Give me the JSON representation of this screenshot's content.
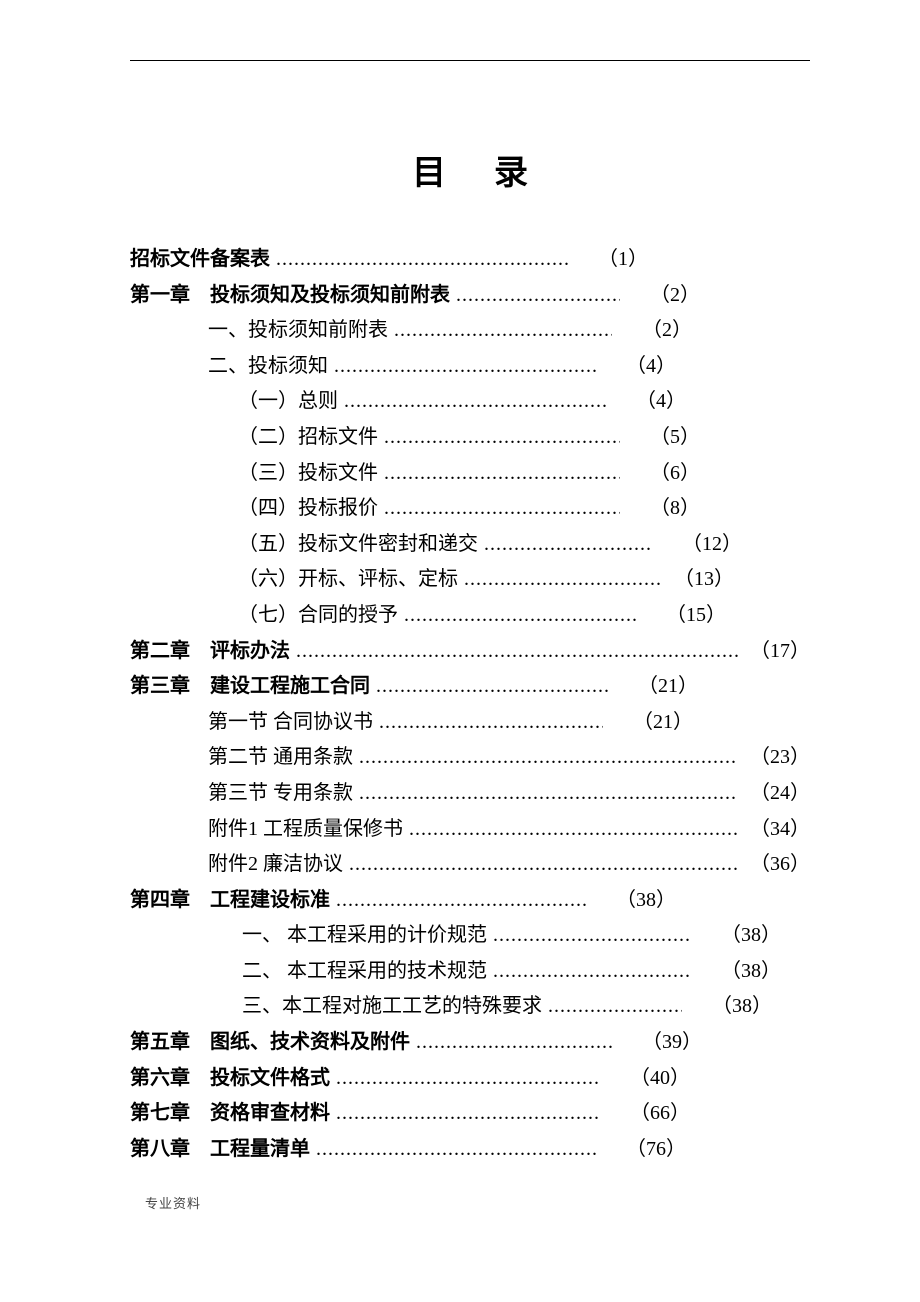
{
  "title": "目录",
  "footer": "专业资料",
  "entries": [
    {
      "label": "招标文件备案表",
      "page": "（1）",
      "indent": 0,
      "bold": true,
      "leader_width": 292,
      "gap": true
    },
    {
      "label": "第一章　投标须知及投标须知前附表",
      "page": "（2）",
      "indent": 0,
      "bold": true,
      "leader_width": 164,
      "gap": true
    },
    {
      "label": "一、投标须知前附表",
      "page": "（2）",
      "indent": 1,
      "bold": false,
      "leader_width": 218,
      "gap": true
    },
    {
      "label": "二、投标须知",
      "page": "（4）",
      "indent": 1,
      "bold": false,
      "leader_width": 262,
      "gap": true
    },
    {
      "label": "（一）总则",
      "page": "（4）",
      "indent": 2,
      "bold": false,
      "leader_width": 262,
      "gap": true
    },
    {
      "label": "（二）招标文件",
      "page": "（5）",
      "indent": 2,
      "bold": false,
      "leader_width": 236,
      "gap": true
    },
    {
      "label": "（三）投标文件",
      "page": "（6）",
      "indent": 2,
      "bold": false,
      "leader_width": 236,
      "gap": true
    },
    {
      "label": "（四）投标报价",
      "page": "（8）",
      "indent": 2,
      "bold": false,
      "leader_width": 236,
      "gap": true
    },
    {
      "label": "（五）投标文件密封和递交",
      "page": "（12）",
      "indent": 2,
      "bold": false,
      "leader_width": 168,
      "gap": true
    },
    {
      "label": "（六）开标、评标、定标",
      "page": "（13）",
      "indent": 2,
      "bold": false,
      "leader_width": 198,
      "gap": false
    },
    {
      "label": "（七）合同的授予",
      "page": "（15）",
      "indent": 2,
      "bold": false,
      "leader_width": 232,
      "gap": true
    },
    {
      "label": "第二章　评标办法",
      "page": "（17）",
      "indent": 0,
      "bold": true,
      "leader_width": 460,
      "gap": false
    },
    {
      "label": "第三章　建设工程施工合同",
      "page": "（21）",
      "indent": 0,
      "bold": true,
      "leader_width": 232,
      "gap": true
    },
    {
      "label": "第一节 合同协议书",
      "page": "（21）",
      "indent": 1,
      "bold": false,
      "leader_width": 224,
      "gap": true
    },
    {
      "label": "第二节 通用条款",
      "page": "（23）",
      "indent": 1,
      "bold": false,
      "leader_width": 418,
      "gap": false
    },
    {
      "label": "第三节 专用条款",
      "page": "（24）",
      "indent": 1,
      "bold": false,
      "leader_width": 418,
      "gap": false
    },
    {
      "label": "附件1 工程质量保修书",
      "page": "（34）",
      "indent": 1,
      "bold": false,
      "leader_width": 366,
      "gap": false
    },
    {
      "label": "附件2 廉洁协议",
      "page": "（36）",
      "indent": 1,
      "bold": false,
      "leader_width": 428,
      "gap": false
    },
    {
      "label": "第四章　工程建设标准",
      "page": "（38）",
      "indent": 0,
      "bold": true,
      "leader_width": 250,
      "gap": true
    },
    {
      "label": "一、 本工程采用的计价规范",
      "page": "（38）",
      "indent": 3,
      "bold": false,
      "leader_width": 198,
      "gap": true
    },
    {
      "label": "二、 本工程采用的技术规范",
      "page": "（38）",
      "indent": 3,
      "bold": false,
      "leader_width": 198,
      "gap": true
    },
    {
      "label": "三、本工程对施工工艺的特殊要求",
      "page": "（38）",
      "indent": 3,
      "bold": false,
      "leader_width": 134,
      "gap": true
    },
    {
      "label": "第五章　图纸、技术资料及附件",
      "page": "（39）",
      "indent": 0,
      "bold": true,
      "leader_width": 196,
      "gap": true
    },
    {
      "label": "第六章　投标文件格式",
      "page": "（40）",
      "indent": 0,
      "bold": true,
      "leader_width": 264,
      "gap": true
    },
    {
      "label": "第七章　资格审查材料",
      "page": "（66）",
      "indent": 0,
      "bold": true,
      "leader_width": 264,
      "gap": true
    },
    {
      "label": "第八章　工程量清单",
      "page": "（76）",
      "indent": 0,
      "bold": true,
      "leader_width": 280,
      "gap": true
    }
  ]
}
